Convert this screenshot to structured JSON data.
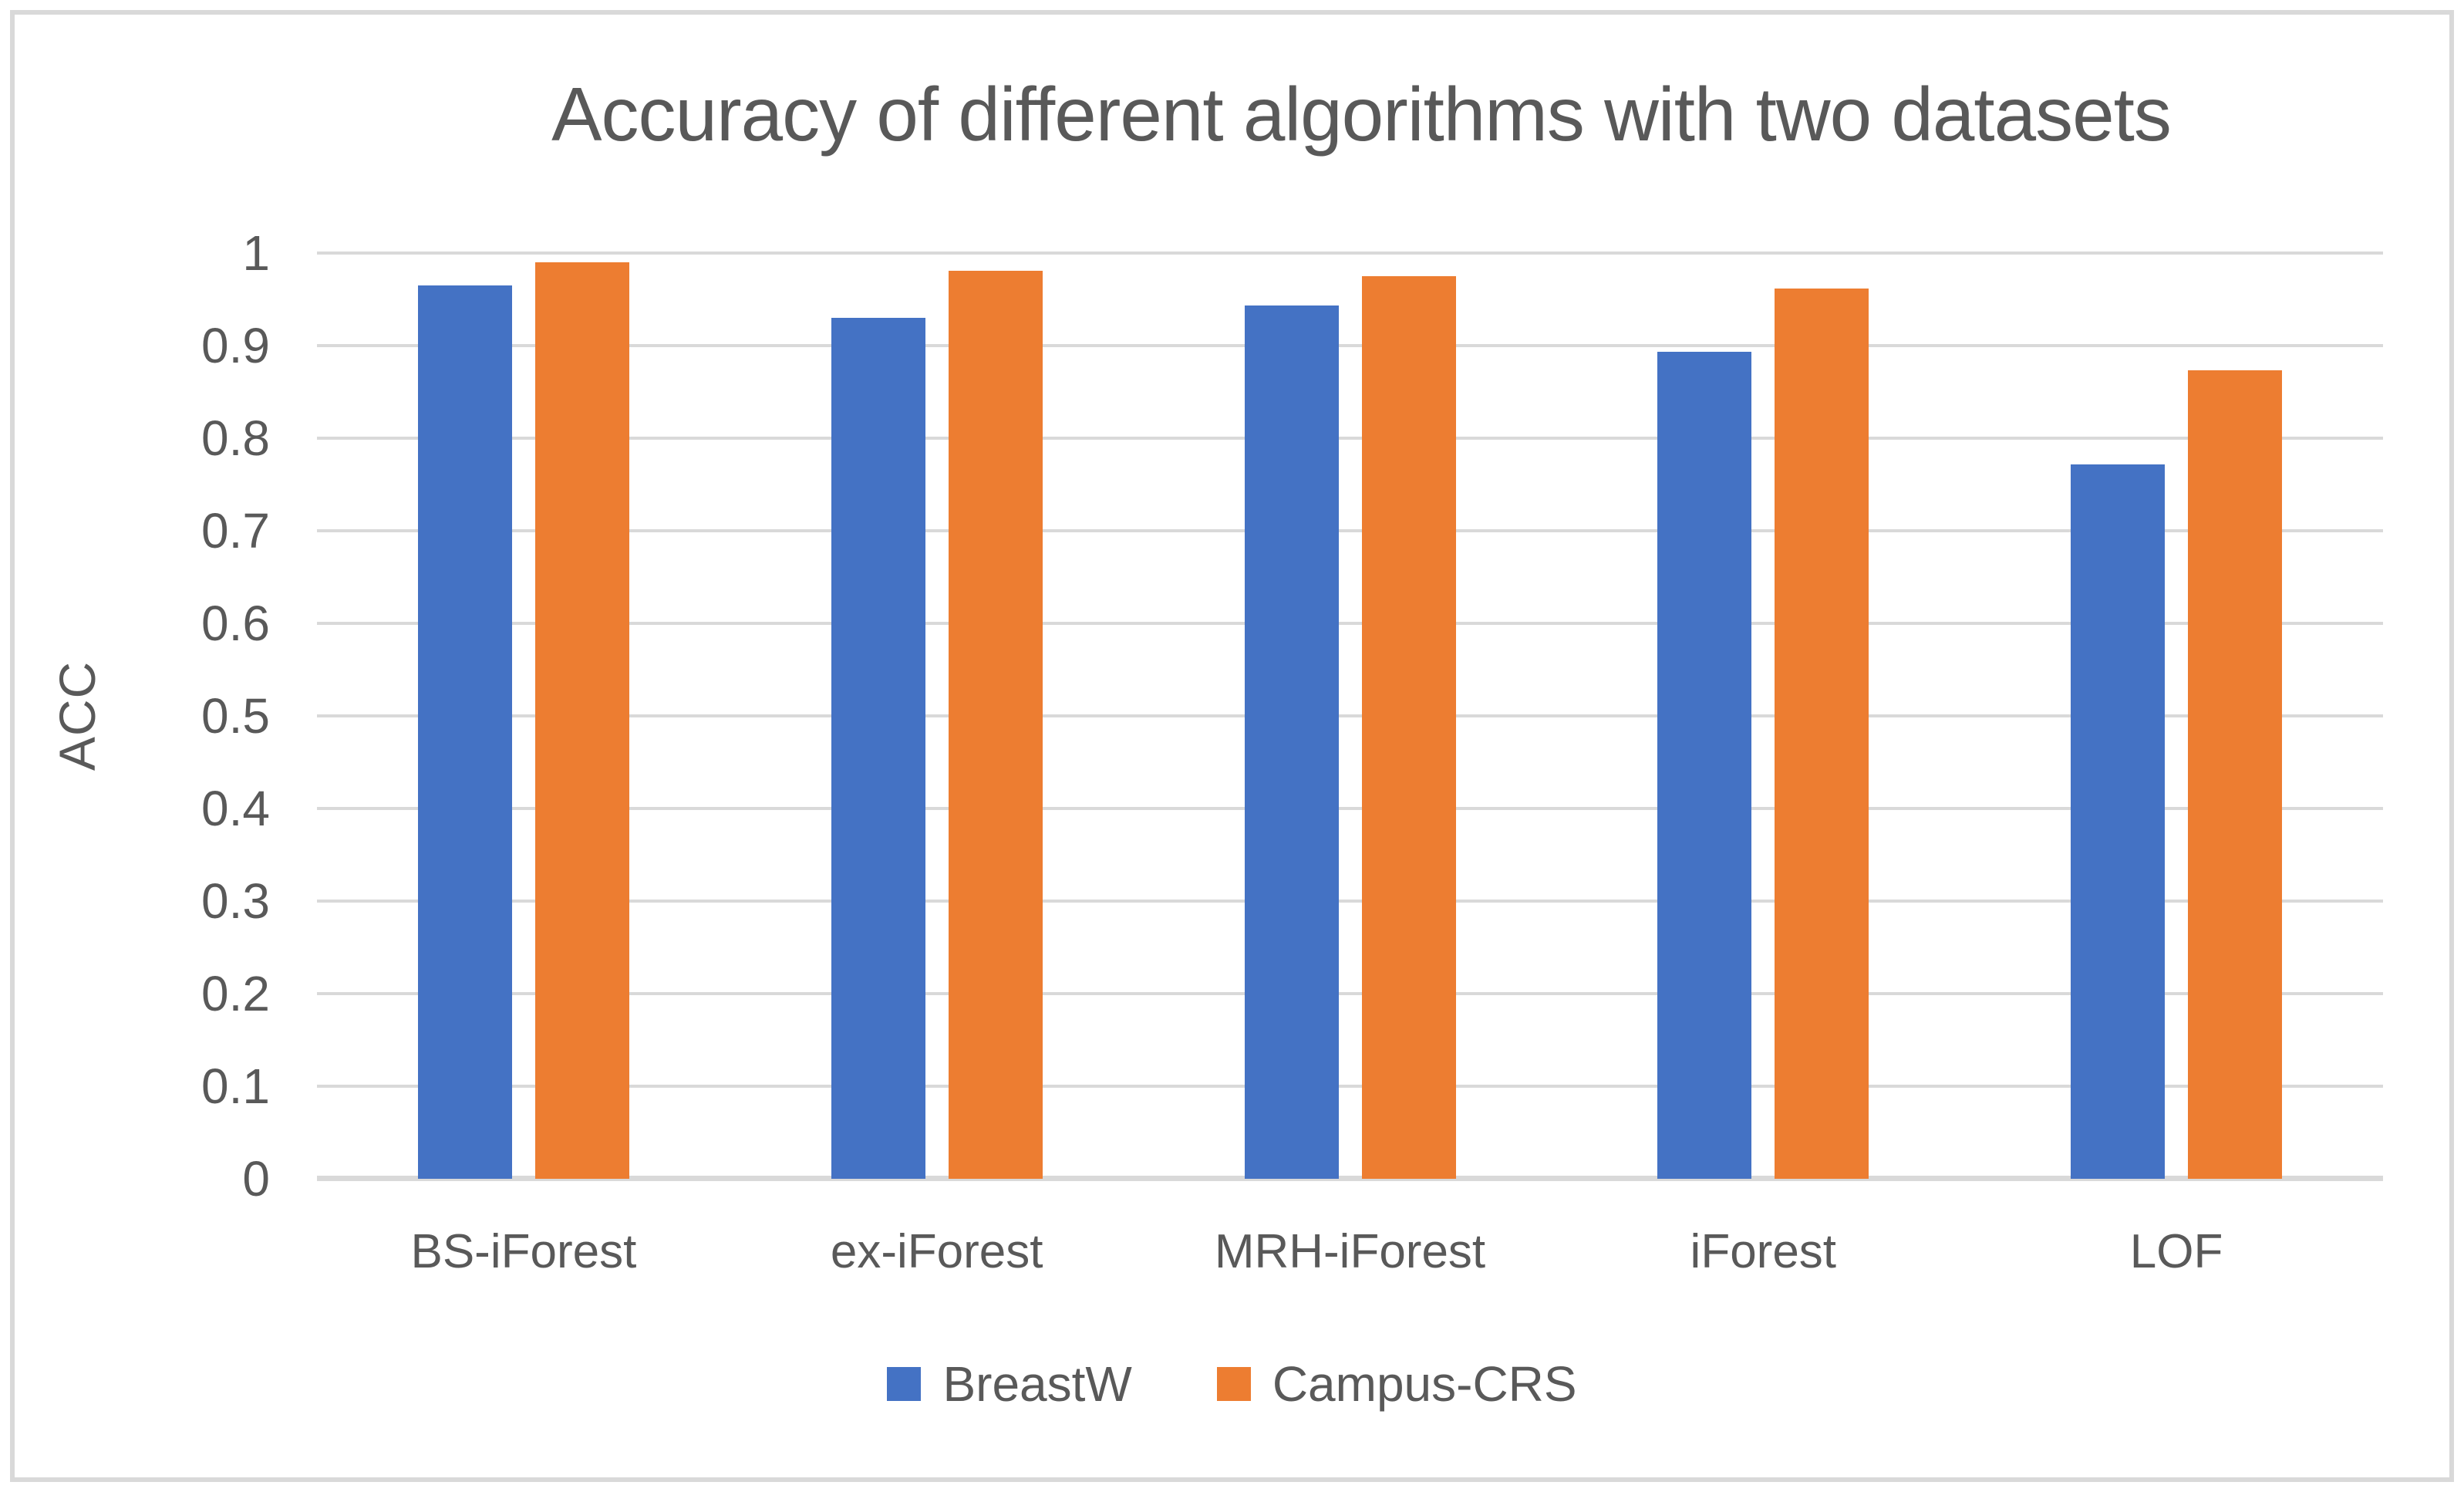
{
  "chart_data": {
    "type": "bar",
    "title": "Accuracy of different algorithms with two datasets",
    "xlabel": "",
    "ylabel": "ACC",
    "categories": [
      "BS-iForest",
      "ex-iForest",
      "MRH-iForest",
      "iForest",
      "LOF"
    ],
    "series": [
      {
        "name": "BreastW",
        "color": "#4472C4",
        "values": [
          0.965,
          0.93,
          0.943,
          0.893,
          0.772
        ]
      },
      {
        "name": "Campus-CRS",
        "color": "#ED7D31",
        "values": [
          0.99,
          0.981,
          0.975,
          0.962,
          0.873
        ]
      }
    ],
    "ylim": [
      0,
      1
    ],
    "yticks": [
      0,
      0.1,
      0.2,
      0.3,
      0.4,
      0.5,
      0.6,
      0.7,
      0.8,
      0.9,
      1
    ],
    "ytick_labels": [
      "0",
      "0.1",
      "0.2",
      "0.3",
      "0.4",
      "0.5",
      "0.6",
      "0.7",
      "0.8",
      "0.9",
      "1"
    ],
    "grid": "horizontal",
    "legend_position": "bottom"
  },
  "colors": {
    "text": "#595959",
    "gridline": "#d9d9d9",
    "frame_border": "#d9d9d9",
    "background": "#ffffff",
    "series_blue": "#4472C4",
    "series_orange": "#ED7D31"
  }
}
